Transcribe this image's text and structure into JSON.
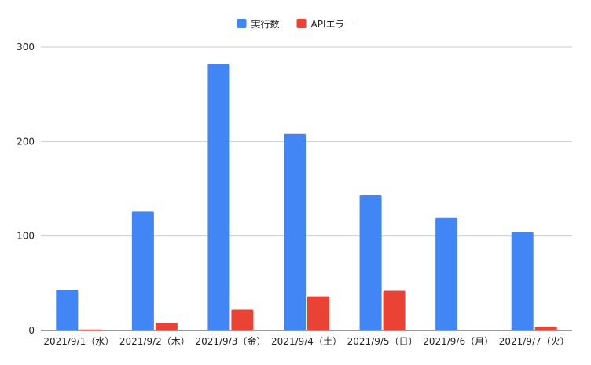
{
  "chart_data": {
    "type": "bar",
    "categories": [
      "2021/9/1（水）",
      "2021/9/2（木）",
      "2021/9/3（金）",
      "2021/9/4（土）",
      "2021/9/5（日）",
      "2021/9/6（月）",
      "2021/9/7（火）"
    ],
    "series": [
      {
        "name": "実行数",
        "color": "#4285f4",
        "values": [
          43,
          126,
          282,
          208,
          143,
          119,
          104
        ]
      },
      {
        "name": "APIエラー",
        "color": "#ea4335",
        "values": [
          1,
          8,
          22,
          36,
          42,
          0,
          4
        ]
      }
    ],
    "ylim": [
      0,
      300
    ],
    "yticks": [
      0,
      100,
      200,
      300
    ],
    "grid": true,
    "legend_position": "top-center"
  }
}
